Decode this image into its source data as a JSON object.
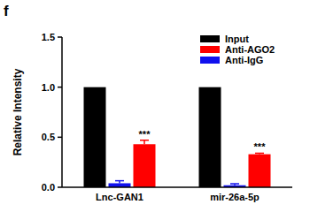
{
  "chart_data": {
    "type": "bar",
    "panel_label": "f",
    "y_label": "Relative Intensity",
    "categories": [
      "Lnc-GAN1",
      "mir-26a-5p"
    ],
    "series": [
      {
        "name": "Input",
        "color": "#000000",
        "values": [
          1,
          1
        ]
      },
      {
        "name": "Anti-AGO2",
        "color": "#ff0000",
        "values": [
          0.43,
          0.33
        ],
        "errors": [
          0.04,
          0.01
        ]
      },
      {
        "name": "Anti-IgG",
        "color": "#1010ee",
        "values": [
          0.04,
          0.02
        ],
        "errors": [
          0.025,
          0.015
        ]
      }
    ],
    "ylim": [
      0,
      1.5
    ],
    "yticks": [
      {
        "value": 0,
        "label": "0.0"
      },
      0.5,
      {
        "value": 1,
        "label": "1.0"
      },
      1.5
    ],
    "legend": "upper right",
    "annotations": [
      {
        "text": "***",
        "category": "Lnc-GAN1",
        "series": "Anti-AGO2"
      },
      {
        "text": "***",
        "category": "mir-26a-5p",
        "series": "Anti-AGO2"
      }
    ]
  }
}
